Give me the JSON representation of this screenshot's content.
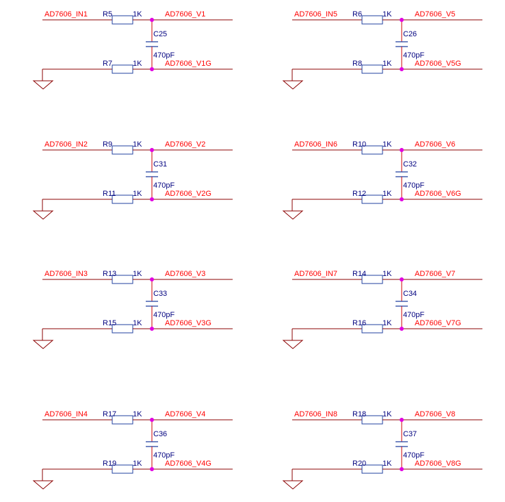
{
  "schematic": {
    "colors": {
      "wire": "#8b0000",
      "net_label": "#ff0000",
      "designator": "#00007f",
      "component": "#1f3f9f",
      "junction": "#e000e0"
    },
    "channels": [
      {
        "net_in": "AD7606_IN1",
        "r_top": "R5",
        "r_top_value": "1K",
        "out": "AD7606_V1",
        "cap": "C25",
        "cap_value": "470pF",
        "r_bot": "R7",
        "r_bot_value": "1K",
        "out_g": "AD7606_V1G"
      },
      {
        "net_in": "AD7606_IN5",
        "r_top": "R6",
        "r_top_value": "1K",
        "out": "AD7606_V5",
        "cap": "C26",
        "cap_value": "470pF",
        "r_bot": "R8",
        "r_bot_value": "1K",
        "out_g": "AD7606_V5G"
      },
      {
        "net_in": "AD7606_IN2",
        "r_top": "R9",
        "r_top_value": "1K",
        "out": "AD7606_V2",
        "cap": "C31",
        "cap_value": "470pF",
        "r_bot": "R11",
        "r_bot_value": "1K",
        "out_g": "AD7606_V2G"
      },
      {
        "net_in": "AD7606_IN6",
        "r_top": "R10",
        "r_top_value": "1K",
        "out": "AD7606_V6",
        "cap": "C32",
        "cap_value": "470pF",
        "r_bot": "R12",
        "r_bot_value": "1K",
        "out_g": "AD7606_V6G"
      },
      {
        "net_in": "AD7606_IN3",
        "r_top": "R13",
        "r_top_value": "1K",
        "out": "AD7606_V3",
        "cap": "C33",
        "cap_value": "470pF",
        "r_bot": "R15",
        "r_bot_value": "1K",
        "out_g": "AD7606_V3G"
      },
      {
        "net_in": "AD7606_IN7",
        "r_top": "R14",
        "r_top_value": "1K",
        "out": "AD7606_V7",
        "cap": "C34",
        "cap_value": "470pF",
        "r_bot": "R16",
        "r_bot_value": "1K",
        "out_g": "AD7606_V7G"
      },
      {
        "net_in": "AD7606_IN4",
        "r_top": "R17",
        "r_top_value": "1K",
        "out": "AD7606_V4",
        "cap": "C36",
        "cap_value": "470pF",
        "r_bot": "R19",
        "r_bot_value": "1K",
        "out_g": "AD7606_V4G"
      },
      {
        "net_in": "AD7606_IN8",
        "r_top": "R18",
        "r_top_value": "1K",
        "out": "AD7606_V8",
        "cap": "C37",
        "cap_value": "470pF",
        "r_bot": "R20",
        "r_bot_value": "1K",
        "out_g": "AD7606_V8G"
      }
    ]
  }
}
